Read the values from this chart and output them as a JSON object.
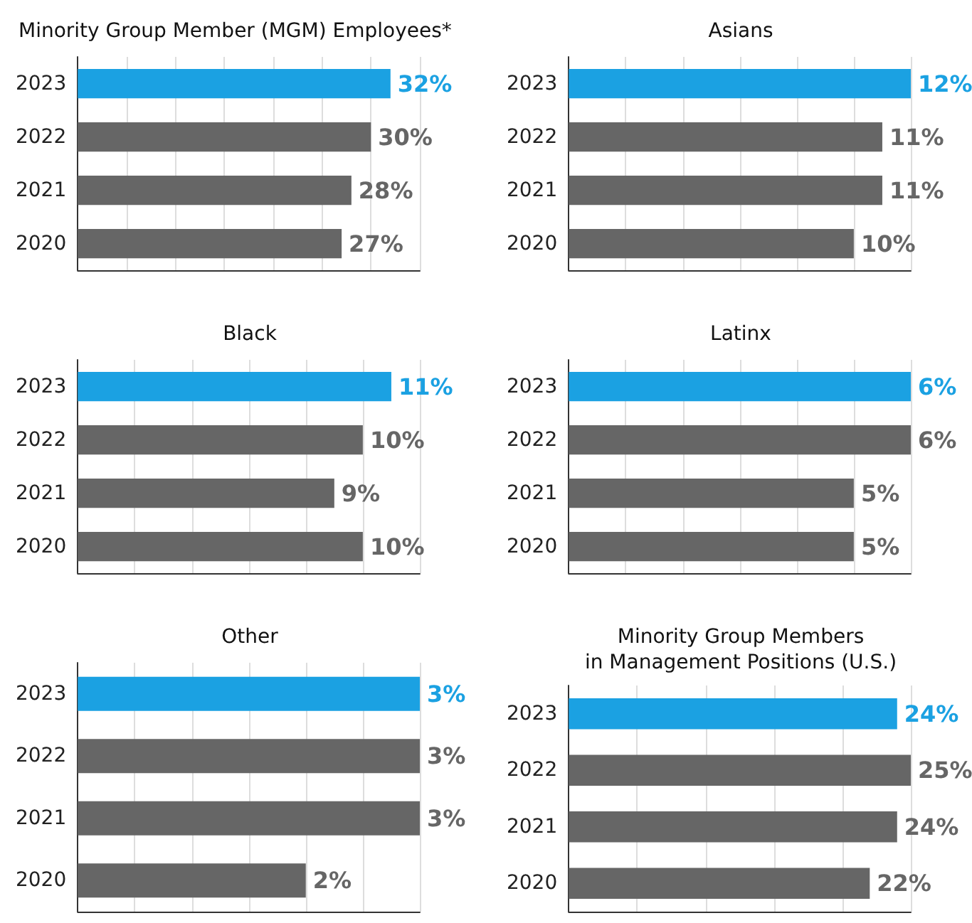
{
  "chart_data": [
    {
      "type": "bar",
      "orientation": "horizontal",
      "title": "Minority Group Member (MGM) Employees*",
      "categories": [
        "2023",
        "2022",
        "2021",
        "2020"
      ],
      "values": [
        32,
        30,
        28,
        27
      ],
      "value_labels": [
        "32%",
        "30%",
        "28%",
        "27%"
      ],
      "colors": [
        "#1ba1e2",
        "#666666",
        "#666666",
        "#666666"
      ],
      "grid": "x",
      "tick_labels": "y"
    },
    {
      "type": "bar",
      "orientation": "horizontal",
      "title": "Asians",
      "categories": [
        "2023",
        "2022",
        "2021",
        "2020"
      ],
      "values": [
        12,
        11,
        11,
        10
      ],
      "value_labels": [
        "12%",
        "11%",
        "11%",
        "10%"
      ],
      "colors": [
        "#1ba1e2",
        "#666666",
        "#666666",
        "#666666"
      ],
      "grid": "x",
      "tick_labels": "y"
    },
    {
      "type": "bar",
      "orientation": "horizontal",
      "title": "Black",
      "categories": [
        "2023",
        "2022",
        "2021",
        "2020"
      ],
      "values": [
        11,
        10,
        9,
        10
      ],
      "value_labels": [
        "11%",
        "10%",
        "9%",
        "10%"
      ],
      "colors": [
        "#1ba1e2",
        "#666666",
        "#666666",
        "#666666"
      ],
      "grid": "x",
      "tick_labels": "y"
    },
    {
      "type": "bar",
      "orientation": "horizontal",
      "title": "Latinx",
      "categories": [
        "2023",
        "2022",
        "2021",
        "2020"
      ],
      "values": [
        6,
        6,
        5,
        5
      ],
      "value_labels": [
        "6%",
        "6%",
        "5%",
        "5%"
      ],
      "colors": [
        "#1ba1e2",
        "#666666",
        "#666666",
        "#666666"
      ],
      "grid": "x",
      "tick_labels": "y"
    },
    {
      "type": "bar",
      "orientation": "horizontal",
      "title": "Other",
      "categories": [
        "2023",
        "2022",
        "2021",
        "2020"
      ],
      "values": [
        3,
        3,
        3,
        2
      ],
      "value_labels": [
        "3%",
        "3%",
        "3%",
        "2%"
      ],
      "colors": [
        "#1ba1e2",
        "#666666",
        "#666666",
        "#666666"
      ],
      "grid": "x",
      "tick_labels": "y"
    },
    {
      "type": "bar",
      "orientation": "horizontal",
      "title": "Minority Group Members\nin Management Positions (U.S.)",
      "categories": [
        "2023",
        "2022",
        "2021",
        "2020"
      ],
      "values": [
        24,
        25,
        24,
        22
      ],
      "value_labels": [
        "24%",
        "25%",
        "24%",
        "22%"
      ],
      "colors": [
        "#1ba1e2",
        "#666666",
        "#666666",
        "#666666"
      ],
      "grid": "x",
      "tick_labels": "y"
    }
  ]
}
